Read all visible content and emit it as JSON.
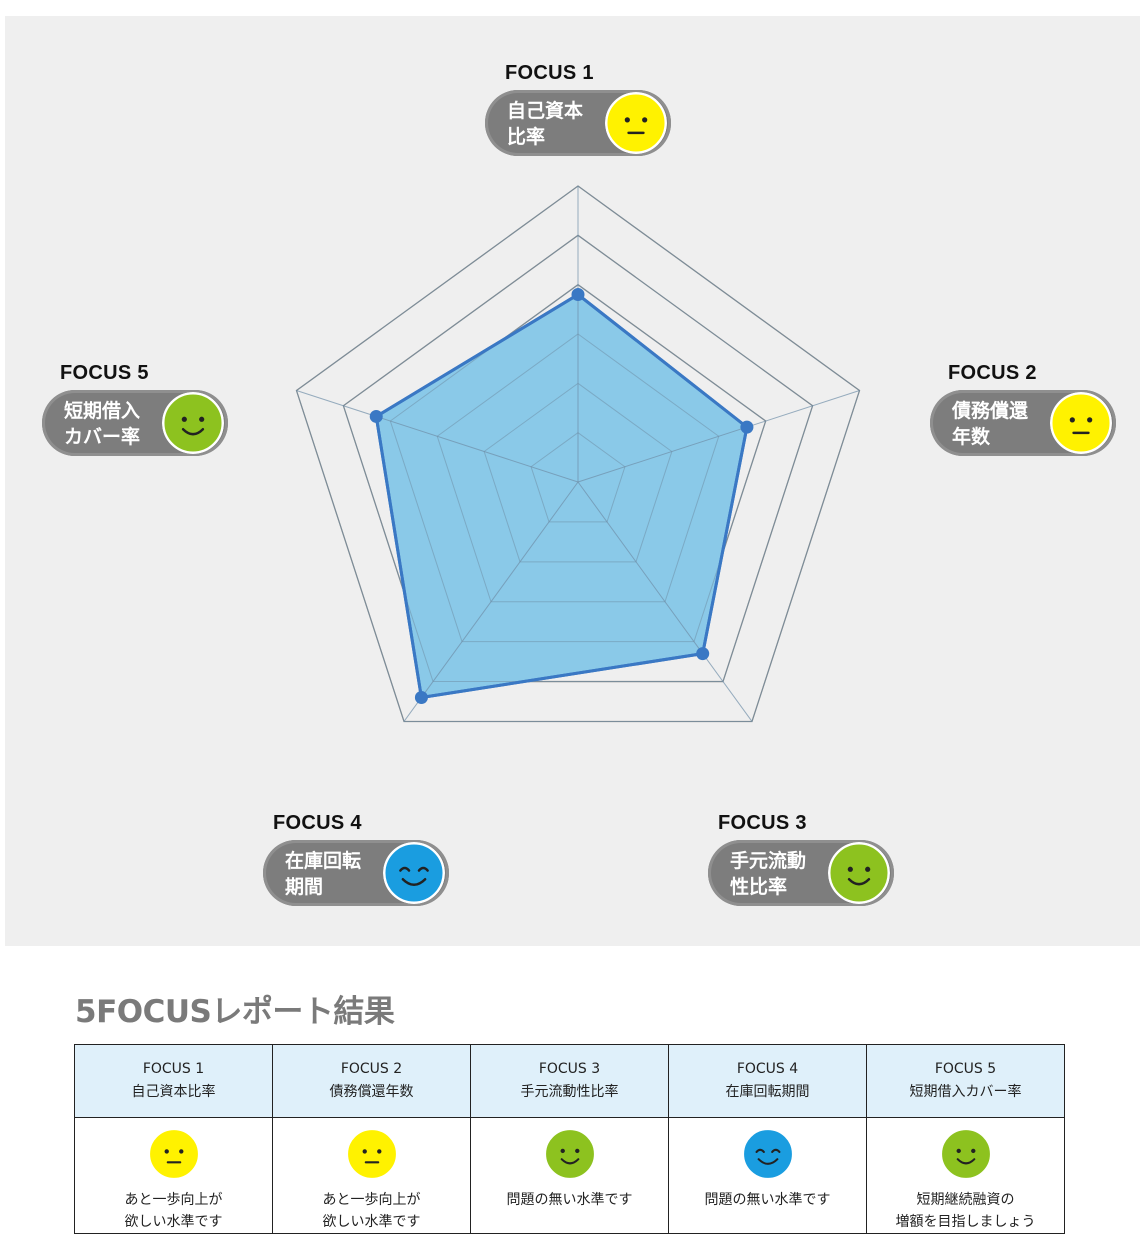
{
  "colors": {
    "panel_bg": "#efefef",
    "grid_line": "#8a8a8a",
    "spoke_line": "#6f8fa8",
    "area_fill": "#8ac9e8",
    "area_stroke": "#3a78c4",
    "point": "#3a78c4",
    "pill_bg": "#7d7d7d",
    "table_header_bg": "#dff0fa",
    "title_gray": "#7a7a7a",
    "face_yellow": "#fff200",
    "face_green": "#8dc21f",
    "face_blue": "#1a9de0"
  },
  "chart_data": {
    "type": "radar",
    "axes": [
      {
        "focus": "FOCUS 1",
        "label_lines": [
          "自己資本",
          "比率"
        ],
        "value": 3.8,
        "face": "neutral",
        "face_color": "yellow"
      },
      {
        "focus": "FOCUS 2",
        "label_lines": [
          "債務償還",
          "年数"
        ],
        "value": 3.6,
        "face": "neutral",
        "face_color": "yellow"
      },
      {
        "focus": "FOCUS 3",
        "label_lines": [
          "手元流動",
          "性比率"
        ],
        "value": 4.3,
        "face": "smile",
        "face_color": "green"
      },
      {
        "focus": "FOCUS 4",
        "label_lines": [
          "在庫回転",
          "期間"
        ],
        "value": 5.4,
        "face": "happy",
        "face_color": "blue"
      },
      {
        "focus": "FOCUS 5",
        "label_lines": [
          "短期借入",
          "カバー率"
        ],
        "value": 4.3,
        "face": "smile",
        "face_color": "green"
      }
    ],
    "rings": [
      1,
      2,
      3,
      4,
      5,
      6
    ],
    "range": [
      0,
      6
    ],
    "grid": true,
    "legend": "none"
  },
  "report": {
    "title": "5FOCUSレポート結果",
    "columns": [
      {
        "focus": "FOCUS 1",
        "name": "自己資本比率",
        "face": "neutral",
        "face_color": "yellow",
        "comment_lines": [
          "あと一歩向上が",
          "欲しい水準です"
        ]
      },
      {
        "focus": "FOCUS 2",
        "name": "債務償還年数",
        "face": "neutral",
        "face_color": "yellow",
        "comment_lines": [
          "あと一歩向上が",
          "欲しい水準です"
        ]
      },
      {
        "focus": "FOCUS 3",
        "name": "手元流動性比率",
        "face": "smile",
        "face_color": "green",
        "comment_lines": [
          "問題の無い水準です"
        ]
      },
      {
        "focus": "FOCUS 4",
        "name": "在庫回転期間",
        "face": "happy",
        "face_color": "blue",
        "comment_lines": [
          "問題の無い水準です"
        ]
      },
      {
        "focus": "FOCUS 5",
        "name": "短期借入カバー率",
        "face": "smile",
        "face_color": "green",
        "comment_lines": [
          "短期継続融資の",
          "増額を目指しましょう"
        ]
      }
    ]
  }
}
